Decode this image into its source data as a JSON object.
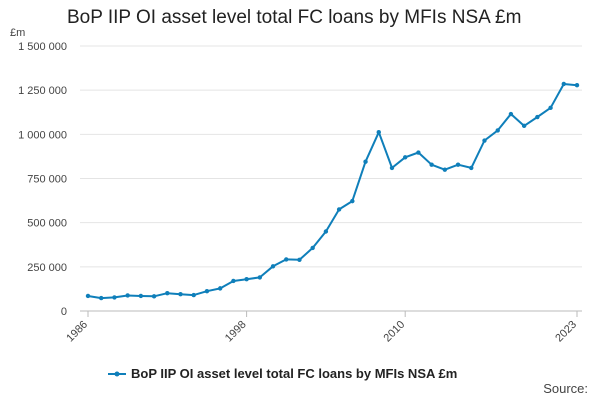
{
  "chart_data": {
    "type": "line",
    "title": "BoP IIP OI asset level total FC loans by MFIs NSA £m",
    "ylabel": "£m",
    "xlabel": "",
    "ylim": [
      0,
      1500000
    ],
    "yticks": [
      0,
      250000,
      500000,
      750000,
      1000000,
      1250000,
      1500000
    ],
    "ytick_labels": [
      "0",
      "250 000",
      "500 000",
      "750 000",
      "1 000 000",
      "1 250 000",
      "1 500 000"
    ],
    "xticks": [
      1986,
      1998,
      2010,
      2023
    ],
    "xtick_labels": [
      "1986",
      "1998",
      "2010",
      "2023"
    ],
    "grid": true,
    "legend_position": "bottom",
    "source_label": "Source:",
    "series": [
      {
        "name": "BoP IIP OI asset level total FC loans by MFIs NSA £m",
        "color": "#0f7fba",
        "x": [
          1986,
          1987,
          1988,
          1989,
          1990,
          1991,
          1992,
          1993,
          1994,
          1995,
          1996,
          1997,
          1998,
          1999,
          2000,
          2001,
          2002,
          2003,
          2004,
          2005,
          2006,
          2007,
          2008,
          2009,
          2010,
          2011,
          2012,
          2013,
          2014,
          2015,
          2016,
          2017,
          2018,
          2019,
          2020,
          2021,
          2022,
          2023
        ],
        "values": [
          85000,
          73000,
          77000,
          88000,
          85000,
          83000,
          101000,
          95000,
          90000,
          112000,
          128000,
          170000,
          180000,
          190000,
          253000,
          292000,
          290000,
          357000,
          450000,
          575000,
          622000,
          845000,
          1012000,
          810000,
          870000,
          897000,
          828000,
          800000,
          828000,
          810000,
          965000,
          1022000,
          1115000,
          1048000,
          1098000,
          1150000,
          1285000,
          1278000
        ]
      }
    ]
  }
}
